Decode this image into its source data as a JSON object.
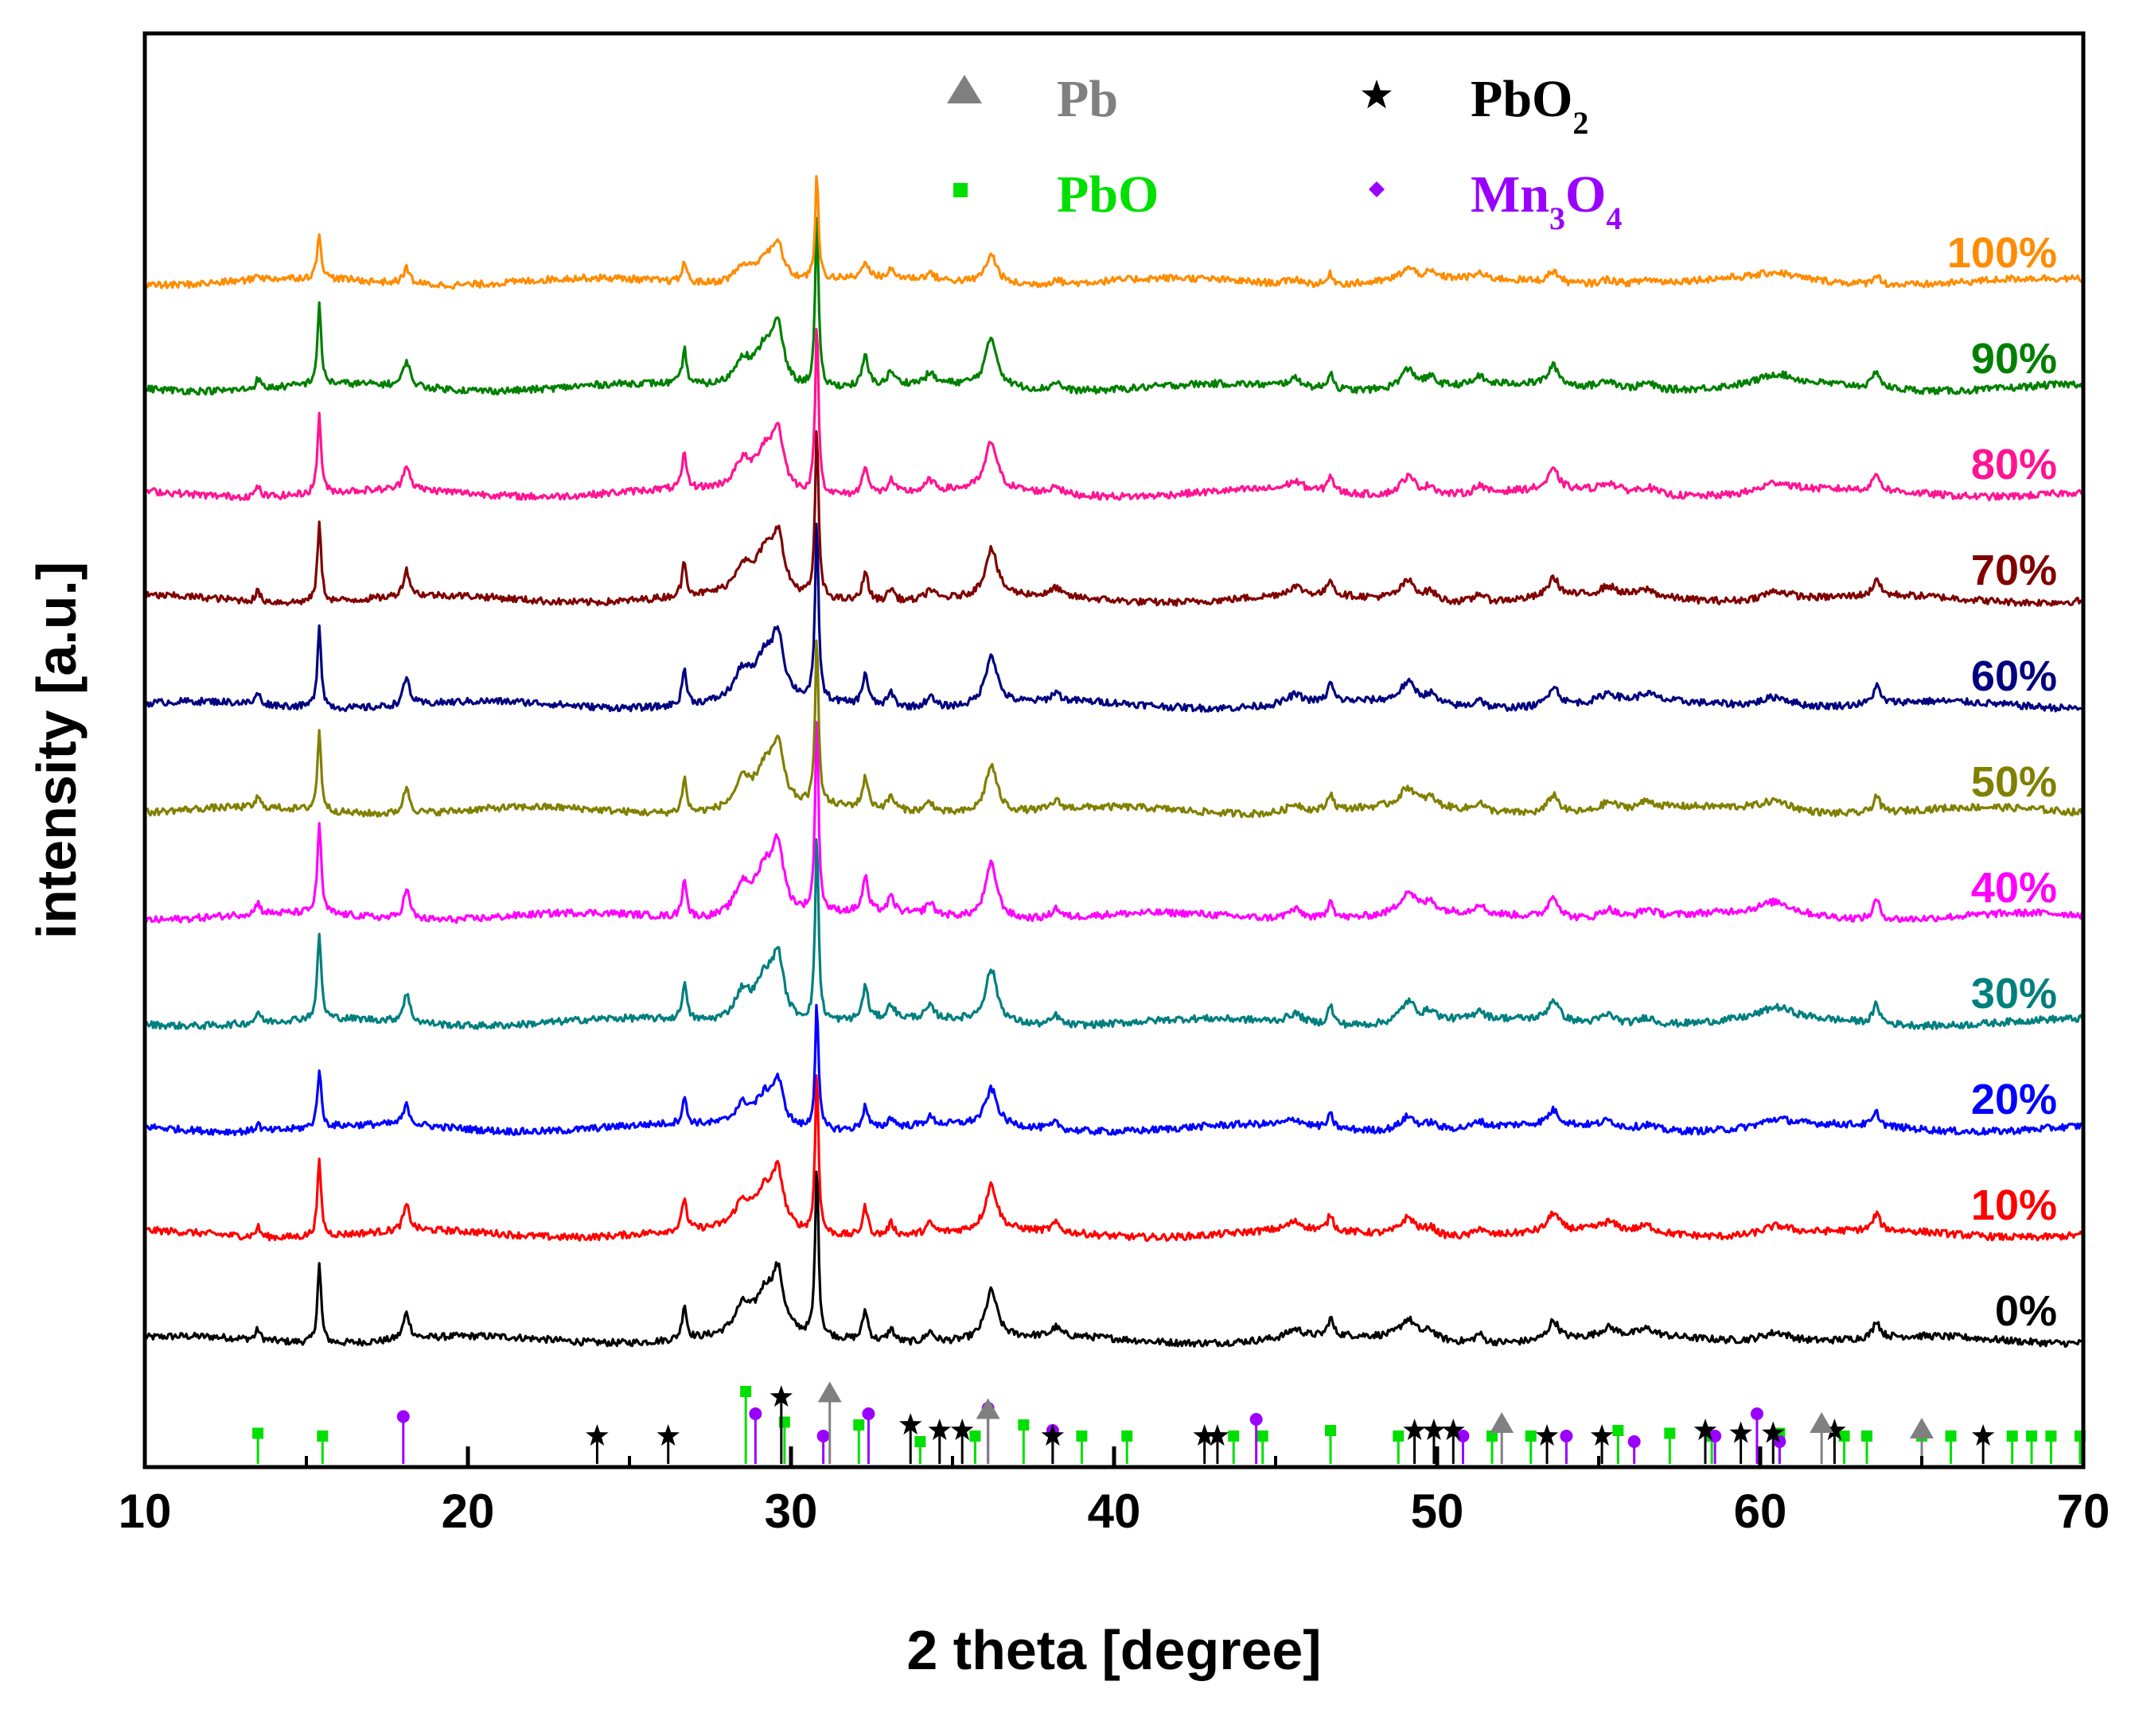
{
  "chart_data": {
    "type": "line",
    "title": "",
    "xlabel": "2 theta [degree]",
    "ylabel": "intensity [a.u.]",
    "xlim": [
      10,
      70
    ],
    "xticks": [
      10,
      20,
      30,
      40,
      50,
      60,
      70
    ],
    "xtick_labels": [
      "10",
      "20",
      "30",
      "40",
      "50",
      "60",
      "70"
    ],
    "yticks_shown": false,
    "legend": {
      "placement": "top-center",
      "entries": [
        {
          "id": "pb",
          "symbol": "triangle",
          "label": "Pb",
          "sub": "",
          "color": "#808080"
        },
        {
          "id": "pbo2",
          "symbol": "star",
          "label": "PbO",
          "sub": "2",
          "color": "#000000"
        },
        {
          "id": "pbo",
          "symbol": "square",
          "label": "PbO",
          "sub": "",
          "color": "#00e000"
        },
        {
          "id": "mn3o4",
          "symbol": "diamond",
          "label": "Mn",
          "sub": "3",
          "label2": "O",
          "sub2": "4",
          "color": "#9900ff"
        }
      ]
    },
    "series": [
      {
        "name": "0%",
        "color": "#000000",
        "baseline": 0.0,
        "scale": 1.0
      },
      {
        "name": "10%",
        "color": "#ff0000",
        "baseline": 1.0,
        "scale": 0.95
      },
      {
        "name": "20%",
        "color": "#0000ff",
        "baseline": 2.0,
        "scale": 0.75
      },
      {
        "name": "30%",
        "color": "#007f7f",
        "baseline": 3.0,
        "scale": 1.1
      },
      {
        "name": "40%",
        "color": "#ff00ff",
        "baseline": 4.0,
        "scale": 1.15
      },
      {
        "name": "50%",
        "color": "#808000",
        "baseline": 5.0,
        "scale": 1.0
      },
      {
        "name": "60%",
        "color": "#000080",
        "baseline": 6.0,
        "scale": 1.05
      },
      {
        "name": "70%",
        "color": "#800000",
        "baseline": 7.0,
        "scale": 1.0
      },
      {
        "name": "80%",
        "color": "#ff1493",
        "baseline": 8.0,
        "scale": 1.0
      },
      {
        "name": "90%",
        "color": "#008000",
        "baseline": 9.0,
        "scale": 1.0
      },
      {
        "name": "100%",
        "color": "#ff8c00",
        "baseline": 10.0,
        "scale": 0.6
      }
    ],
    "peaks": [
      {
        "x": 13.5,
        "h": 0.12,
        "w": 0.08
      },
      {
        "x": 15.4,
        "h": 0.9,
        "w": 0.07
      },
      {
        "x": 18.1,
        "h": 0.3,
        "w": 0.12
      },
      {
        "x": 26.7,
        "h": 0.4,
        "w": 0.08
      },
      {
        "x": 28.5,
        "h": 0.3,
        "w": 0.3
      },
      {
        "x": 29.2,
        "h": 0.45,
        "w": 0.35
      },
      {
        "x": 29.6,
        "h": 0.6,
        "w": 0.2
      },
      {
        "x": 30.8,
        "h": 2.0,
        "w": 0.06
      },
      {
        "x": 32.3,
        "h": 0.35,
        "w": 0.1
      },
      {
        "x": 33.1,
        "h": 0.15,
        "w": 0.12
      },
      {
        "x": 34.3,
        "h": 0.12,
        "w": 0.15
      },
      {
        "x": 36.2,
        "h": 0.55,
        "w": 0.22
      },
      {
        "x": 38.2,
        "h": 0.1,
        "w": 0.15
      },
      {
        "x": 45.6,
        "h": 0.1,
        "w": 0.3
      },
      {
        "x": 46.7,
        "h": 0.2,
        "w": 0.1
      },
      {
        "x": 49.1,
        "h": 0.22,
        "w": 0.3
      },
      {
        "x": 49.8,
        "h": 0.1,
        "w": 0.2
      },
      {
        "x": 51.3,
        "h": 0.1,
        "w": 0.15
      },
      {
        "x": 53.6,
        "h": 0.22,
        "w": 0.2
      },
      {
        "x": 55.3,
        "h": 0.1,
        "w": 0.3
      },
      {
        "x": 56.5,
        "h": 0.08,
        "w": 0.3
      },
      {
        "x": 60.5,
        "h": 0.12,
        "w": 0.6
      },
      {
        "x": 63.6,
        "h": 0.2,
        "w": 0.12
      }
    ],
    "reference_lines": {
      "pbo": {
        "color": "#00e000",
        "marker": "square",
        "positions": [
          13.5,
          15.5,
          28.6,
          29.8,
          32.1,
          34.0,
          35.7,
          37.2,
          39.0,
          40.4,
          43.7,
          44.6,
          46.7,
          48.8,
          51.7,
          52.9,
          55.6,
          57.2,
          58.5,
          60.6,
          62.6,
          63.3,
          65.0,
          65.9,
          67.8,
          68.4,
          69.0,
          69.9
        ],
        "heights": [
          0.55,
          0.5,
          1.3,
          0.75,
          0.7,
          0.4,
          0.5,
          0.7,
          0.5,
          0.5,
          0.5,
          0.5,
          0.6,
          0.5,
          0.5,
          0.5,
          0.6,
          0.55,
          0.5,
          0.55,
          0.5,
          0.5,
          0.5,
          0.5,
          0.5,
          0.5,
          0.5,
          0.5
        ]
      },
      "mn3o4": {
        "color": "#9900ff",
        "marker": "diamond",
        "positions": [
          18.0,
          28.9,
          31.0,
          32.4,
          36.1,
          38.1,
          44.4,
          50.8,
          54.0,
          56.1,
          58.6,
          59.9,
          60.6
        ],
        "heights": [
          0.85,
          0.9,
          0.5,
          0.9,
          1.0,
          0.6,
          0.8,
          0.5,
          0.5,
          0.4,
          0.5,
          0.9,
          0.4
        ]
      },
      "pbo2": {
        "color": "#000000",
        "marker": "star",
        "positions": [
          24.0,
          26.2,
          29.7,
          33.7,
          34.6,
          35.3,
          38.1,
          42.8,
          43.2,
          49.3,
          49.9,
          50.5,
          53.4,
          55.1,
          58.3,
          59.4,
          60.4,
          62.3,
          66.9
        ],
        "heights": [
          0.5,
          0.5,
          1.2,
          0.7,
          0.6,
          0.6,
          0.5,
          0.5,
          0.5,
          0.6,
          0.6,
          0.6,
          0.5,
          0.5,
          0.6,
          0.55,
          0.55,
          0.6,
          0.5
        ]
      },
      "pb": {
        "color": "#808080",
        "marker": "triangle",
        "positions": [
          31.2,
          36.1,
          52.0,
          61.9,
          65.0
        ],
        "heights": [
          1.25,
          0.95,
          0.7,
          0.7,
          0.6
        ]
      }
    }
  }
}
